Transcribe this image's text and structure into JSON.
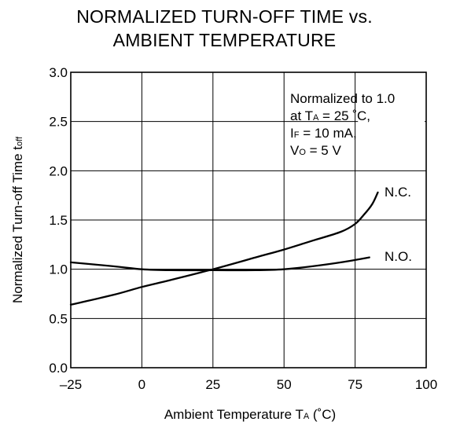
{
  "chart_data": {
    "type": "line",
    "title": [
      "NORMALIZED TURN-OFF TIME vs.",
      "AMBIENT TEMPERATURE"
    ],
    "xlabel": {
      "text": "Ambient Temperature  T",
      "sub": "A",
      "unit": " (˚C)"
    },
    "ylabel": {
      "text": "Normalized Turn-off Time  t",
      "sub": "off"
    },
    "xlim": [
      -25,
      100
    ],
    "ylim": [
      0,
      3.0
    ],
    "x_ticks": [
      -25,
      0,
      25,
      50,
      75,
      100
    ],
    "x_tick_labels": [
      "–25",
      "0",
      "25",
      "50",
      "75",
      "100"
    ],
    "y_ticks": [
      0,
      0.5,
      1.0,
      1.5,
      2.0,
      2.5,
      3.0
    ],
    "y_tick_labels": [
      "0.0",
      "0.5",
      "1.0",
      "1.5",
      "2.0",
      "2.5",
      "3.0"
    ],
    "grid": true,
    "annotation_lines": [
      {
        "text": "Normalized to 1.0"
      },
      {
        "text": "at T",
        "sub": "A",
        "rest": " = 25 ˚C,"
      },
      {
        "text": "I",
        "sub": "F",
        "rest": " = 10 mA,"
      },
      {
        "text": "V",
        "sub": "O",
        "rest": " = 5 V"
      }
    ],
    "series": [
      {
        "name": "N.C.",
        "x": [
          -25,
          -10,
          0,
          10,
          25,
          40,
          50,
          60,
          70,
          75,
          78,
          81,
          83
        ],
        "y": [
          0.64,
          0.74,
          0.82,
          0.89,
          1.0,
          1.12,
          1.2,
          1.29,
          1.38,
          1.46,
          1.55,
          1.66,
          1.78
        ]
      },
      {
        "name": "N.O.",
        "x": [
          -25,
          -10,
          0,
          10,
          25,
          40,
          50,
          60,
          70,
          80
        ],
        "y": [
          1.07,
          1.03,
          1.0,
          0.99,
          0.99,
          0.99,
          1.0,
          1.03,
          1.07,
          1.12
        ]
      }
    ]
  }
}
